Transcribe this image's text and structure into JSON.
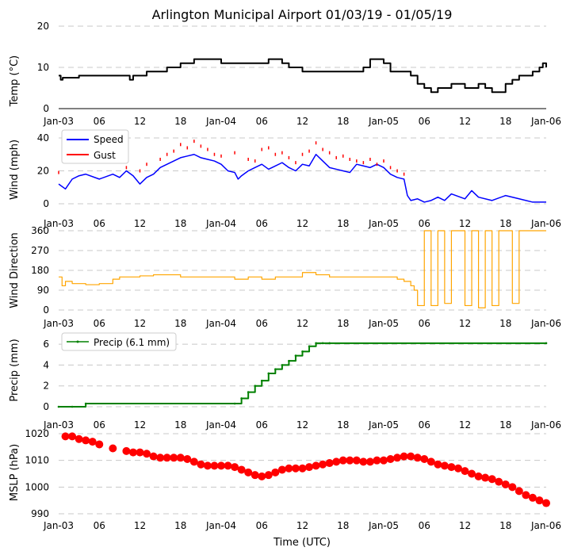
{
  "title": "Arlington Municipal Airport 01/03/19 - 01/05/19",
  "xlabel": "Time (UTC)",
  "x_ticks": [
    "Jan-03",
    "06",
    "12",
    "18",
    "Jan-04",
    "06",
    "12",
    "18",
    "Jan-05",
    "06",
    "12",
    "18",
    "Jan-06"
  ],
  "x_range_hours": [
    0,
    72
  ],
  "colors": {
    "temp": "#000000",
    "speed": "#0000ff",
    "gust": "#ff0000",
    "direction": "#ffa500",
    "precip": "#008000",
    "mslp": "#ff0000",
    "grid": "#c8c8c8"
  },
  "chart_data": [
    {
      "type": "line",
      "ylabel": "Temp (°C)",
      "ylim": [
        0,
        20
      ],
      "yticks": [
        "0",
        "10",
        "20"
      ],
      "series": [
        {
          "name": "Temp",
          "x": [
            0,
            0.3,
            0.6,
            3,
            4,
            6,
            8,
            10,
            10.5,
            11,
            12,
            13,
            15,
            16,
            17,
            18,
            19,
            20,
            21,
            22,
            24,
            26,
            27,
            28,
            29,
            30,
            31,
            32,
            33,
            34,
            36,
            38,
            40,
            42,
            44,
            45,
            46,
            47,
            48,
            49,
            50,
            51,
            52,
            53,
            54,
            55,
            56,
            57,
            58,
            59,
            60,
            61,
            62,
            63,
            64,
            65,
            66,
            67,
            68,
            69,
            70,
            71,
            71.5,
            72
          ],
          "values": [
            8,
            7,
            7.5,
            8,
            8,
            8,
            8,
            8,
            7,
            8,
            8,
            9,
            9,
            10,
            10,
            11,
            11,
            12,
            12,
            12,
            11,
            11,
            11,
            11,
            11,
            11,
            12,
            12,
            11,
            10,
            9,
            9,
            9,
            9,
            9,
            10,
            12,
            12,
            11,
            9,
            9,
            9,
            8,
            6,
            5,
            4,
            5,
            5,
            6,
            6,
            5,
            5,
            6,
            5,
            4,
            4,
            6,
            7,
            8,
            8,
            9,
            10,
            11,
            10
          ]
        }
      ]
    },
    {
      "type": "line",
      "ylabel": "Wind (mph)",
      "ylim": [
        0,
        40
      ],
      "yticks": [
        "0",
        "20",
        "40"
      ],
      "legend": [
        "Speed",
        "Gust"
      ],
      "series": [
        {
          "name": "Speed",
          "x": [
            0,
            1,
            2,
            3,
            4,
            6,
            8,
            9,
            10,
            11,
            12,
            13,
            14,
            15,
            16,
            17,
            18,
            19,
            20,
            21,
            22,
            23,
            24,
            25,
            26,
            26.5,
            27,
            28,
            29,
            30,
            31,
            32,
            33,
            34,
            35,
            36,
            37,
            38,
            39,
            40,
            41,
            42,
            43,
            44,
            45,
            46,
            47,
            48,
            49,
            50,
            51,
            51.5,
            52,
            53,
            54,
            55,
            56,
            57,
            58,
            60,
            61,
            62,
            64,
            66,
            68,
            70,
            72
          ],
          "values": [
            12,
            9,
            15,
            17,
            18,
            15,
            18,
            16,
            20,
            17,
            12,
            16,
            18,
            22,
            24,
            26,
            28,
            29,
            30,
            28,
            27,
            26,
            24,
            20,
            19,
            15,
            17,
            20,
            22,
            24,
            21,
            23,
            25,
            22,
            20,
            24,
            23,
            30,
            26,
            22,
            21,
            20,
            19,
            24,
            23,
            22,
            24,
            22,
            18,
            16,
            15,
            5,
            2,
            3,
            1,
            2,
            4,
            2,
            6,
            3,
            8,
            4,
            2,
            5,
            3,
            1,
            1
          ]
        },
        {
          "name": "Gust",
          "x": [
            0,
            10,
            12,
            13,
            15,
            16,
            17,
            18,
            19,
            20,
            21,
            22,
            23,
            24,
            26,
            28,
            29,
            30,
            31,
            32,
            33,
            34,
            35,
            36,
            37,
            38,
            39,
            40,
            41,
            42,
            43,
            44,
            45,
            46,
            47,
            48,
            49,
            50,
            51
          ],
          "values": [
            19,
            22,
            20,
            24,
            27,
            30,
            32,
            36,
            34,
            38,
            35,
            33,
            30,
            29,
            31,
            27,
            26,
            33,
            34,
            30,
            31,
            28,
            25,
            30,
            32,
            37,
            33,
            31,
            28,
            29,
            27,
            26,
            25,
            27,
            24,
            26,
            22,
            20,
            18
          ]
        }
      ]
    },
    {
      "type": "line",
      "ylabel": "Wind Direction",
      "ylim": [
        0,
        360
      ],
      "yticks": [
        "0",
        "90",
        "180",
        "270",
        "360"
      ],
      "series": [
        {
          "name": "Direction",
          "x": [
            0,
            0.5,
            1,
            2,
            4,
            6,
            8,
            9,
            10,
            12,
            14,
            16,
            18,
            20,
            22,
            24,
            26,
            28,
            30,
            32,
            34,
            36,
            38,
            40,
            42,
            44,
            46,
            48,
            50,
            51,
            52,
            52.5,
            53,
            54,
            55,
            56,
            57,
            58,
            59,
            60,
            61,
            62,
            63,
            64,
            65,
            66,
            67,
            68,
            69,
            70,
            71,
            72
          ],
          "values": [
            150,
            110,
            130,
            120,
            115,
            120,
            140,
            150,
            150,
            155,
            160,
            160,
            150,
            150,
            150,
            150,
            140,
            150,
            140,
            150,
            150,
            170,
            160,
            150,
            150,
            150,
            150,
            150,
            140,
            130,
            110,
            90,
            20,
            360,
            20,
            360,
            30,
            360,
            360,
            20,
            360,
            10,
            360,
            20,
            360,
            360,
            30,
            360,
            360,
            360,
            360,
            360
          ]
        }
      ]
    },
    {
      "type": "line",
      "ylabel": "Precip (mm)",
      "ylim": [
        0,
        7
      ],
      "yticks": [
        "0",
        "2",
        "4",
        "6"
      ],
      "legend": [
        "Precip (6.1 mm)"
      ],
      "series": [
        {
          "name": "Precip (6.1 mm)",
          "x": [
            0,
            2,
            4,
            26,
            27,
            28,
            29,
            30,
            31,
            32,
            33,
            34,
            35,
            36,
            37,
            38,
            39,
            40,
            72
          ],
          "values": [
            0,
            0,
            0.3,
            0.3,
            0.8,
            1.4,
            2.0,
            2.5,
            3.2,
            3.6,
            4.0,
            4.4,
            4.9,
            5.3,
            5.8,
            6.1,
            6.1,
            6.1,
            6.1
          ]
        }
      ]
    },
    {
      "type": "scatter",
      "ylabel": "MSLP (hPa)",
      "ylim": [
        990,
        1020
      ],
      "yticks": [
        "990",
        "1000",
        "1010",
        "1020"
      ],
      "series": [
        {
          "name": "MSLP",
          "x": [
            1,
            2,
            3,
            4,
            5,
            6,
            8,
            10,
            11,
            12,
            13,
            14,
            15,
            16,
            17,
            18,
            19,
            20,
            21,
            22,
            23,
            24,
            25,
            26,
            27,
            28,
            29,
            30,
            31,
            32,
            33,
            34,
            35,
            36,
            37,
            38,
            39,
            40,
            41,
            42,
            43,
            44,
            45,
            46,
            47,
            48,
            49,
            50,
            51,
            52,
            53,
            54,
            55,
            56,
            57,
            58,
            59,
            60,
            61,
            62,
            63,
            64,
            65,
            66,
            67,
            68,
            69,
            70,
            71,
            72
          ],
          "values": [
            1019,
            1019,
            1018,
            1017.5,
            1017,
            1016,
            1014.5,
            1013.5,
            1013,
            1013,
            1012.5,
            1011.5,
            1011,
            1011,
            1011,
            1011,
            1010.5,
            1009.5,
            1008.5,
            1008,
            1008,
            1008,
            1008,
            1007.5,
            1006.5,
            1005.5,
            1004.5,
            1004,
            1004.5,
            1005.5,
            1006.5,
            1007,
            1007,
            1007,
            1007.5,
            1008,
            1008.5,
            1009,
            1009.5,
            1010,
            1010,
            1010,
            1009.5,
            1009.5,
            1010,
            1010,
            1010.5,
            1011,
            1011.5,
            1011.5,
            1011,
            1010.5,
            1009.5,
            1008.5,
            1008,
            1007.5,
            1007,
            1006,
            1005,
            1004,
            1003.5,
            1003,
            1002,
            1001,
            1000,
            998.5,
            997,
            996,
            995,
            994
          ]
        }
      ]
    }
  ]
}
